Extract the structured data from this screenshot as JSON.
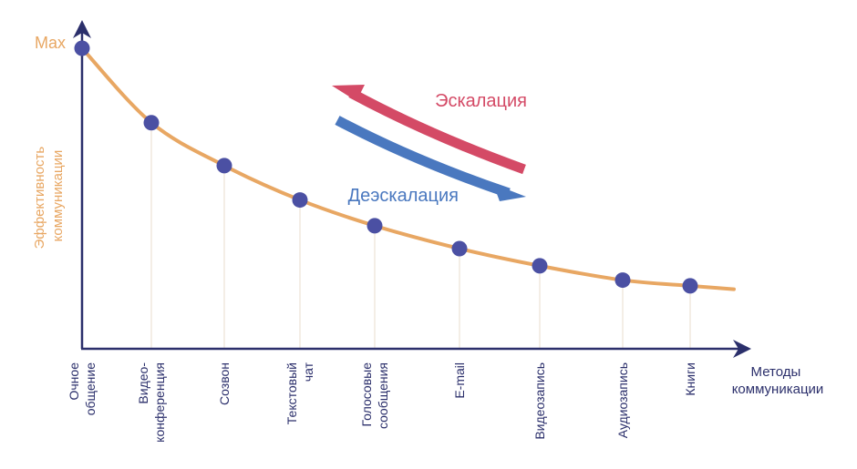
{
  "chart_data": {
    "type": "line",
    "ylabel": "Эффективность коммуникации",
    "xlabel": "Методы коммуникации",
    "y_max_label": "Max",
    "categories": [
      [
        "Очное",
        "общение"
      ],
      [
        "Видео-",
        "конференция"
      ],
      [
        "Созвон"
      ],
      [
        "Текстовый",
        "чат"
      ],
      [
        "Голосовые",
        "сообщения"
      ],
      [
        "E-mail"
      ],
      [
        "Видеозапись"
      ],
      [
        "Аудиозапись"
      ],
      [
        "Книги"
      ]
    ],
    "values": [
      100,
      74,
      59,
      47,
      38,
      30,
      24,
      19,
      17
    ],
    "ylim": [
      -5,
      100
    ],
    "grid": false,
    "annotations": [
      {
        "text": "Эскалация",
        "direction": "right-to-left",
        "color": "#d44a66"
      },
      {
        "text": "Деэскалация",
        "direction": "left-to-right",
        "color": "#4a78bf"
      }
    ],
    "colors": {
      "curve": "#e8a763",
      "points": "#4b50a3",
      "axis": "#2b2f6b",
      "guide_lines": "#eadccc",
      "ylabel": "#e8a763"
    }
  }
}
